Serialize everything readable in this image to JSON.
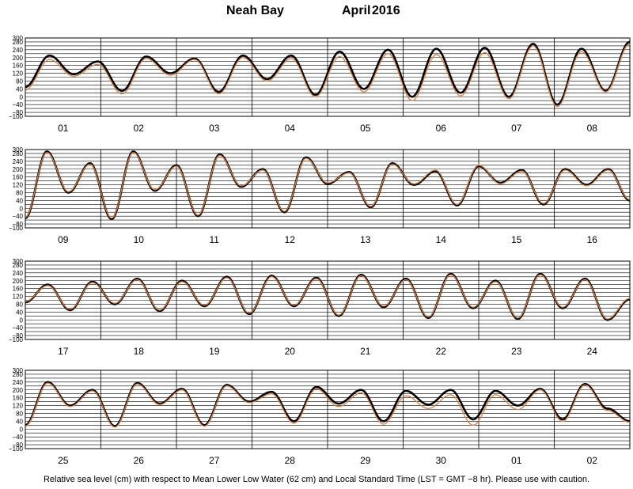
{
  "title": {
    "location": "Neah Bay",
    "month": "April",
    "year": "2016"
  },
  "footer": "Relative sea level (cm) with respect to Mean Lower Low Water (62 cm) and Local Standard Time (LST = GMT −8 hr). Please use with caution.",
  "colors": {
    "observed": "#000000",
    "predicted": "#e07b39",
    "grid": "#000000",
    "background": "#ffffff"
  },
  "chart_data": [
    {
      "type": "line",
      "x_tick_labels": [
        "01",
        "02",
        "03",
        "04",
        "05",
        "06",
        "07",
        "08"
      ],
      "y_tick_labels": [
        "300",
        "280",
        "240",
        "200",
        "160",
        "120",
        "80",
        "40",
        "0",
        "−40",
        "−80",
        "−100"
      ],
      "ylim": [
        -100,
        300
      ],
      "grid": true,
      "series": [
        {
          "role": "observed",
          "highs": [
            210,
            180,
            205,
            195,
            210,
            210,
            230,
            240,
            245,
            250,
            270,
            245,
            280
          ],
          "lows": [
            50,
            115,
            30,
            120,
            25,
            90,
            10,
            40,
            0,
            20,
            0,
            -40,
            30
          ]
        },
        {
          "role": "predicted",
          "highs": [
            190,
            165,
            195,
            190,
            200,
            195,
            205,
            220,
            215,
            225,
            260,
            230,
            270
          ],
          "lows": [
            35,
            105,
            15,
            110,
            15,
            80,
            0,
            25,
            -20,
            5,
            -10,
            -50,
            25
          ]
        }
      ]
    },
    {
      "type": "line",
      "x_tick_labels": [
        "09",
        "10",
        "11",
        "12",
        "13",
        "14",
        "15",
        "16"
      ],
      "y_tick_labels": [
        "300",
        "280",
        "240",
        "200",
        "160",
        "120",
        "80",
        "40",
        "0",
        "−40",
        "−80",
        "−100"
      ],
      "ylim": [
        -100,
        300
      ],
      "grid": true,
      "series": [
        {
          "role": "observed",
          "highs": [
            290,
            230,
            290,
            220,
            275,
            200,
            260,
            185,
            230,
            190,
            215,
            195,
            200,
            200
          ],
          "lows": [
            -50,
            80,
            -55,
            90,
            -40,
            110,
            -20,
            125,
            5,
            120,
            15,
            130,
            20,
            120,
            40
          ]
        },
        {
          "role": "predicted",
          "highs": [
            285,
            225,
            285,
            215,
            270,
            195,
            255,
            180,
            225,
            195,
            220,
            190,
            195,
            195
          ],
          "lows": [
            -45,
            85,
            -50,
            95,
            -35,
            115,
            -15,
            130,
            10,
            125,
            20,
            125,
            25,
            115,
            45
          ]
        }
      ]
    },
    {
      "type": "line",
      "x_tick_labels": [
        "17",
        "18",
        "19",
        "20",
        "21",
        "22",
        "23",
        "24"
      ],
      "y_tick_labels": [
        "300",
        "280",
        "240",
        "200",
        "160",
        "120",
        "80",
        "40",
        "0",
        "−40",
        "−80",
        "−100"
      ],
      "ylim": [
        -100,
        300
      ],
      "grid": true,
      "series": [
        {
          "role": "observed",
          "highs": [
            180,
            195,
            210,
            200,
            220,
            225,
            215,
            230,
            210,
            235,
            200,
            235,
            210
          ],
          "lows": [
            90,
            50,
            80,
            45,
            70,
            30,
            70,
            20,
            65,
            10,
            60,
            5,
            60,
            0,
            105
          ]
        },
        {
          "role": "predicted",
          "highs": [
            175,
            190,
            205,
            195,
            215,
            220,
            210,
            225,
            205,
            230,
            195,
            230,
            205
          ],
          "lows": [
            95,
            55,
            85,
            50,
            75,
            35,
            75,
            25,
            70,
            15,
            65,
            10,
            65,
            5,
            110
          ]
        }
      ]
    },
    {
      "type": "line",
      "x_tick_labels": [
        "25",
        "26",
        "27",
        "28",
        "29",
        "30",
        "01",
        "02"
      ],
      "y_tick_labels": [
        "300",
        "280",
        "240",
        "200",
        "160",
        "120",
        "80",
        "40",
        "0",
        "−40",
        "−80",
        "−100"
      ],
      "ylim": [
        -100,
        300
      ],
      "grid": true,
      "series": [
        {
          "role": "observed",
          "highs": [
            240,
            200,
            235,
            205,
            225,
            190,
            215,
            200,
            195,
            200,
            195,
            205,
            230
          ],
          "lows": [
            20,
            120,
            15,
            130,
            20,
            140,
            40,
            130,
            40,
            125,
            50,
            120,
            50,
            105,
            40
          ]
        },
        {
          "role": "predicted",
          "highs": [
            235,
            195,
            230,
            200,
            220,
            180,
            205,
            185,
            170,
            175,
            175,
            200,
            225
          ],
          "lows": [
            15,
            115,
            10,
            125,
            15,
            135,
            30,
            115,
            25,
            105,
            20,
            100,
            40,
            95,
            35
          ]
        }
      ]
    }
  ]
}
